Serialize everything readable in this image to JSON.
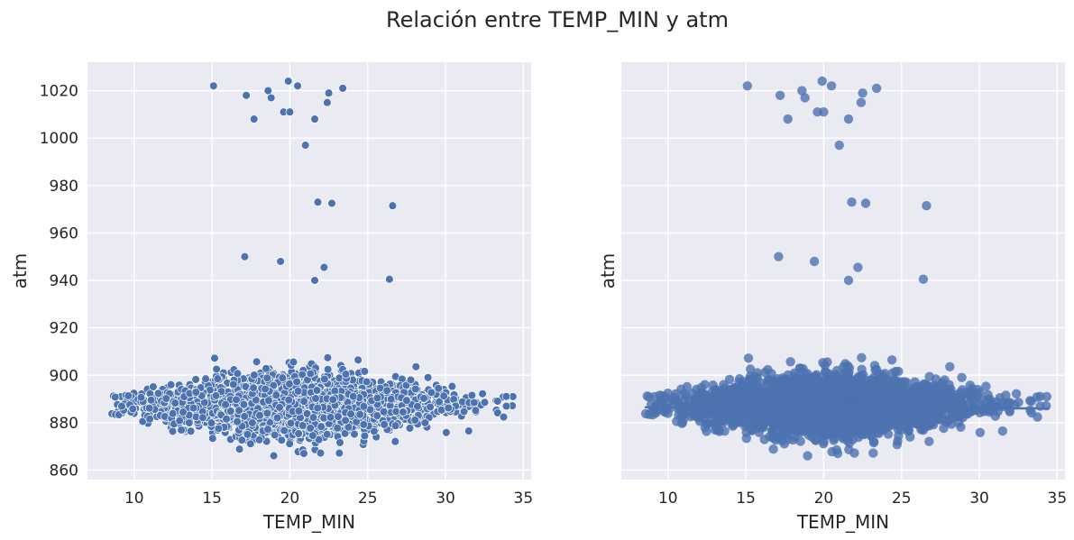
{
  "figure": {
    "suptitle": "Relación entre TEMP_MIN y atm"
  },
  "chart_data": [
    {
      "type": "scatter",
      "panel": "left",
      "xlabel": "TEMP_MIN",
      "ylabel": "atm",
      "xlim": [
        7.0,
        35.5
      ],
      "ylim": [
        856,
        1032
      ],
      "xticks": [
        10,
        15,
        20,
        25,
        30,
        35
      ],
      "yticks": [
        860,
        880,
        900,
        920,
        940,
        960,
        980,
        1000,
        1020
      ],
      "grid": true,
      "marker": "filled circle with white edge",
      "outliers": [
        {
          "x": 15.1,
          "y": 1022
        },
        {
          "x": 17.2,
          "y": 1018
        },
        {
          "x": 17.7,
          "y": 1008
        },
        {
          "x": 18.6,
          "y": 1020
        },
        {
          "x": 18.8,
          "y": 1017
        },
        {
          "x": 19.6,
          "y": 1011
        },
        {
          "x": 19.9,
          "y": 1024
        },
        {
          "x": 20.0,
          "y": 1011
        },
        {
          "x": 20.5,
          "y": 1022
        },
        {
          "x": 22.5,
          "y": 1019
        },
        {
          "x": 22.4,
          "y": 1015
        },
        {
          "x": 21.6,
          "y": 1008
        },
        {
          "x": 23.4,
          "y": 1021
        },
        {
          "x": 21.0,
          "y": 997
        },
        {
          "x": 21.8,
          "y": 973
        },
        {
          "x": 22.7,
          "y": 972.5
        },
        {
          "x": 26.6,
          "y": 971.5
        },
        {
          "x": 17.1,
          "y": 950
        },
        {
          "x": 19.4,
          "y": 948
        },
        {
          "x": 22.2,
          "y": 945.5
        },
        {
          "x": 21.6,
          "y": 940
        },
        {
          "x": 26.4,
          "y": 940.5
        }
      ],
      "bulk": {
        "description": "dense cloud",
        "x_range": [
          8.5,
          34.5
        ],
        "y_center": 887,
        "y_range": [
          863,
          913
        ]
      }
    },
    {
      "type": "scatter",
      "panel": "right",
      "xlabel": "TEMP_MIN",
      "ylabel": "atm",
      "xlim": [
        7.0,
        35.5
      ],
      "ylim": [
        856,
        1032
      ],
      "xticks": [
        10,
        15,
        20,
        25,
        30,
        35
      ],
      "yticks": [
        860,
        880,
        900,
        920,
        940,
        960,
        980,
        1000,
        1020
      ],
      "grid": true,
      "marker": "larger semi-transparent circle",
      "regression_line": {
        "x": [
          8.5,
          34.5
        ],
        "y": [
          886.5,
          886
        ]
      },
      "outliers": [
        {
          "x": 15.1,
          "y": 1022
        },
        {
          "x": 17.2,
          "y": 1018
        },
        {
          "x": 17.7,
          "y": 1008
        },
        {
          "x": 18.6,
          "y": 1020
        },
        {
          "x": 18.8,
          "y": 1017
        },
        {
          "x": 19.6,
          "y": 1011
        },
        {
          "x": 19.9,
          "y": 1024
        },
        {
          "x": 20.0,
          "y": 1011
        },
        {
          "x": 20.5,
          "y": 1022
        },
        {
          "x": 22.5,
          "y": 1019
        },
        {
          "x": 22.4,
          "y": 1015
        },
        {
          "x": 21.6,
          "y": 1008
        },
        {
          "x": 23.4,
          "y": 1021
        },
        {
          "x": 21.0,
          "y": 997
        },
        {
          "x": 21.8,
          "y": 973
        },
        {
          "x": 22.7,
          "y": 972.5
        },
        {
          "x": 26.6,
          "y": 971.5
        },
        {
          "x": 17.1,
          "y": 950
        },
        {
          "x": 19.4,
          "y": 948
        },
        {
          "x": 22.2,
          "y": 945.5
        },
        {
          "x": 21.6,
          "y": 940
        },
        {
          "x": 26.4,
          "y": 940.5
        }
      ],
      "bulk": {
        "description": "dense cloud",
        "x_range": [
          8.5,
          34.5
        ],
        "y_center": 887,
        "y_range": [
          863,
          913
        ]
      }
    }
  ],
  "colors": {
    "plot_bg": "#eaeaf2",
    "grid": "#ffffff",
    "point": "#4c72b0",
    "text": "#262626"
  }
}
